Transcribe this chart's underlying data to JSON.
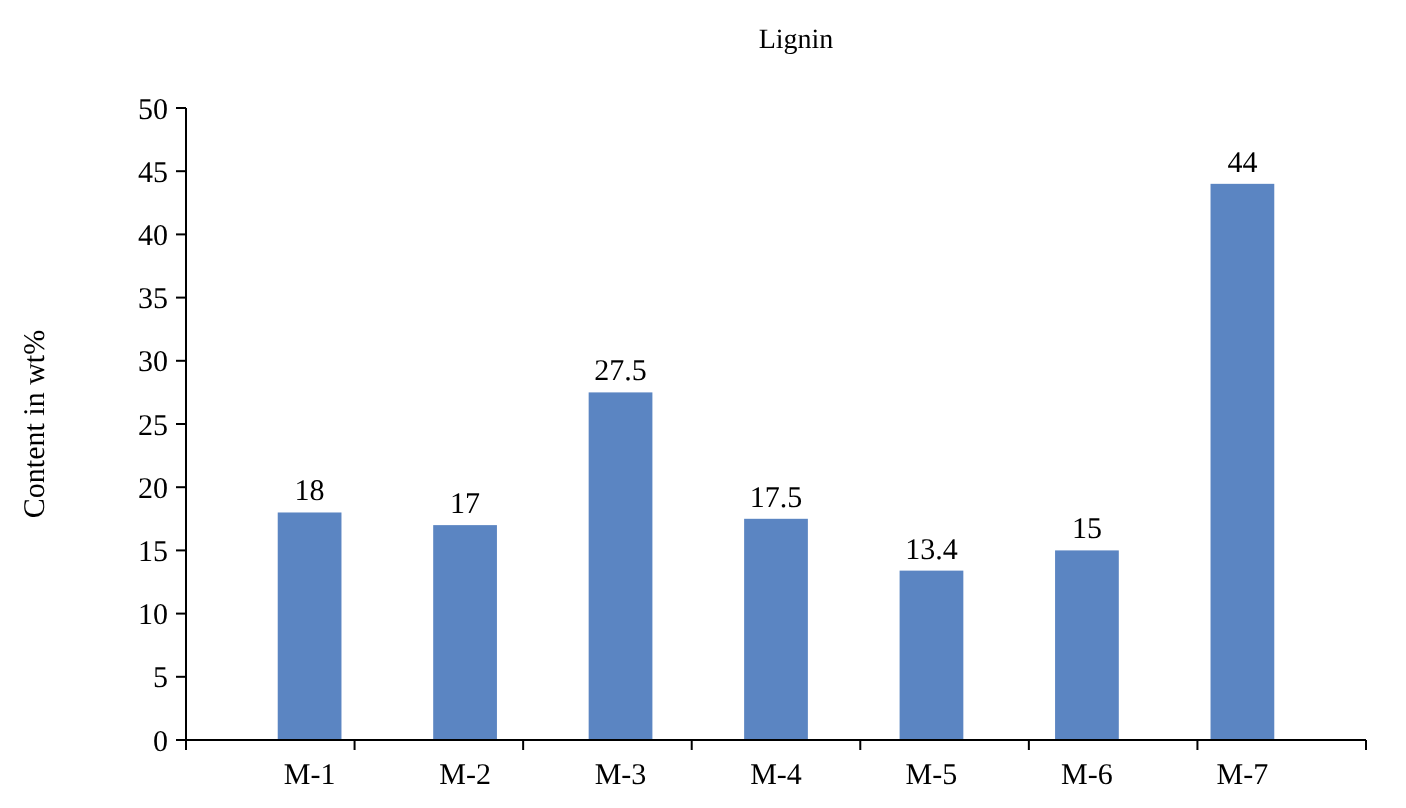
{
  "chart_data": {
    "type": "bar",
    "title": "Lignin",
    "ylabel": "Content in wt%",
    "categories": [
      "M-1",
      "M-2",
      "M-3",
      "M-4",
      "M-5",
      "M-6",
      "M-7"
    ],
    "values": [
      18,
      17,
      27.5,
      17.5,
      13.4,
      15,
      44
    ],
    "color": "#5b85c2",
    "ylim": [
      0,
      50
    ],
    "yticks": [
      0,
      5,
      10,
      15,
      20,
      25,
      30,
      35,
      40,
      45,
      50
    ],
    "data_labels": true,
    "grid": false
  }
}
